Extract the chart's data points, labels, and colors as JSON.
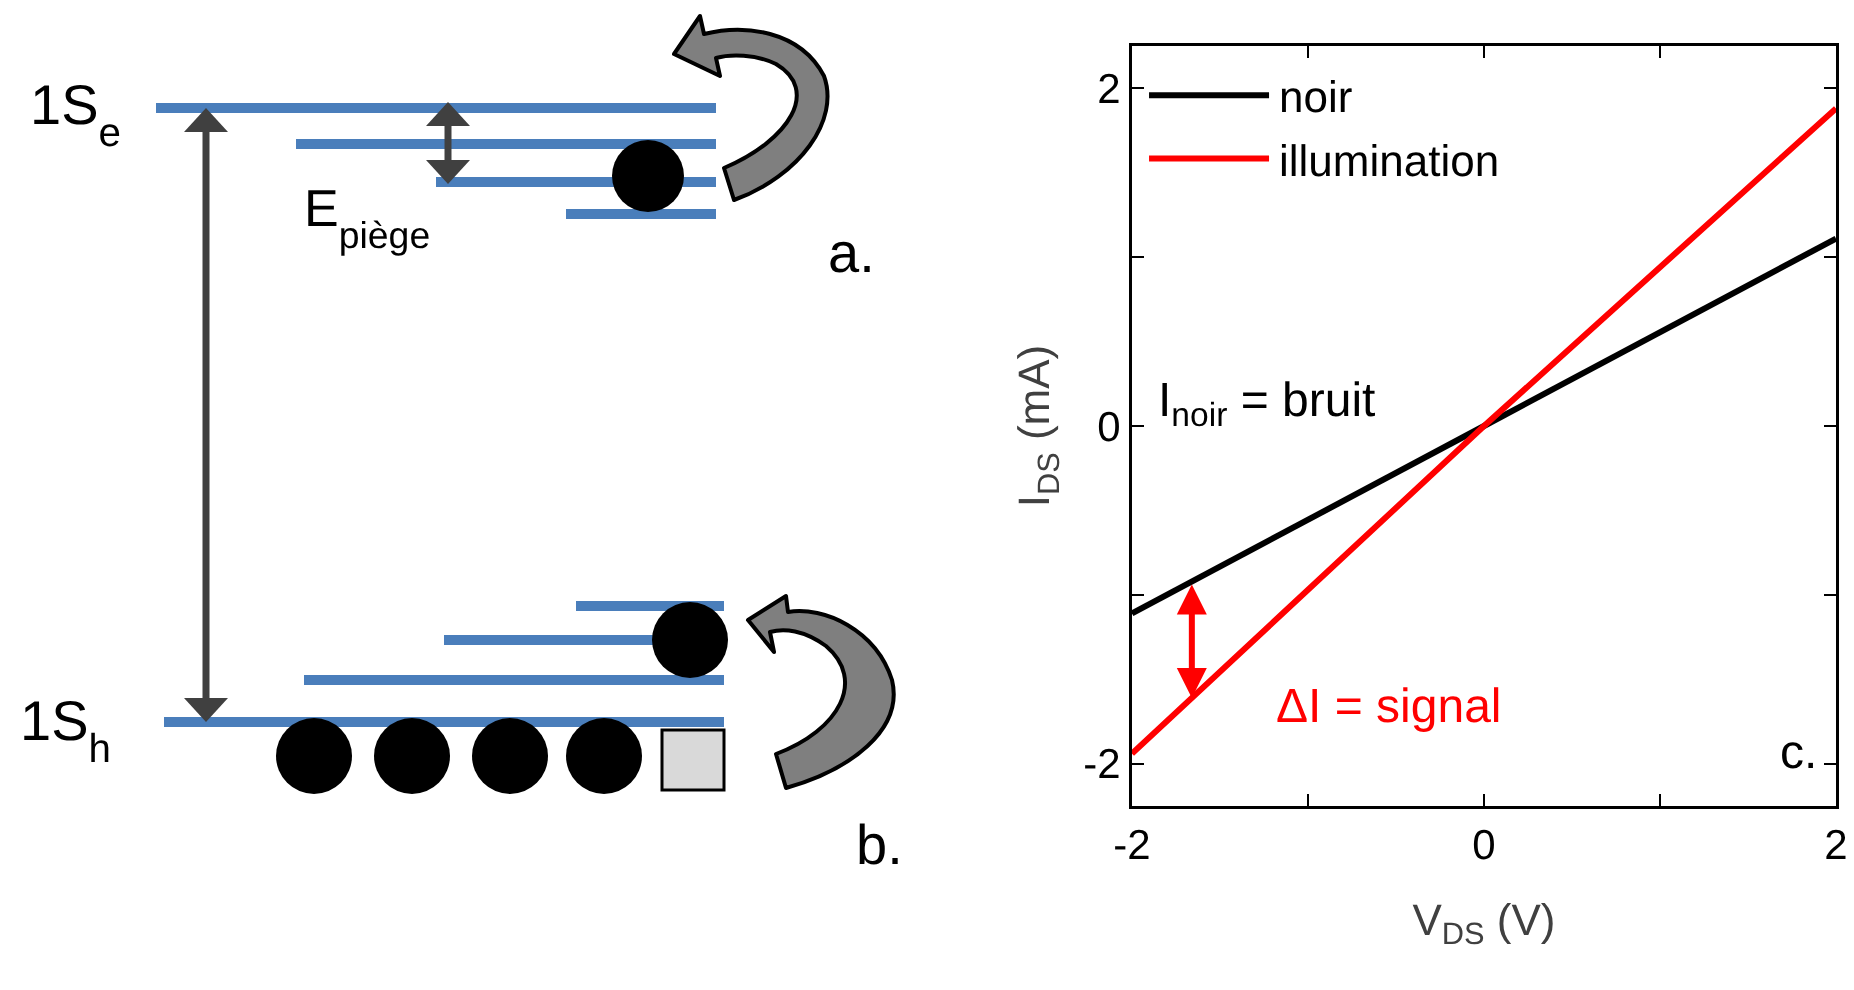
{
  "chart_data": [
    {
      "type": "other",
      "annotations": [
        "1S$_{e}$",
        "E$_{piège}$",
        "a.",
        "1S$_{h}$",
        "b."
      ]
    },
    {
      "type": "line",
      "xlabel": "V$_{DS}$ (V)",
      "ylabel": "I$_{DS}$ (mA)",
      "x": [
        -2,
        0,
        2
      ],
      "series": [
        {
          "name": "noir",
          "color": "#000000",
          "values": [
            -1.11,
            0,
            1.11
          ]
        },
        {
          "name": "illumination",
          "color": "#ff0000",
          "values": [
            -1.94,
            0,
            1.88
          ]
        }
      ],
      "xlim": [
        -2,
        2
      ],
      "ylim": [
        -2.25,
        2.25
      ],
      "xticks": [
        -2,
        {
          "value": -1,
          "label": null
        },
        0,
        {
          "value": 1,
          "label": null
        },
        2
      ],
      "yticks": [
        -2,
        {
          "value": -1,
          "label": null
        },
        0,
        {
          "value": 1,
          "label": null
        },
        2
      ],
      "annotations": [
        "I$_{noir}$ = bruit",
        "ΔI = signal",
        "c."
      ],
      "legend": "top left",
      "grid": false,
      "marker": "none",
      "line_style": "solid"
    }
  ]
}
